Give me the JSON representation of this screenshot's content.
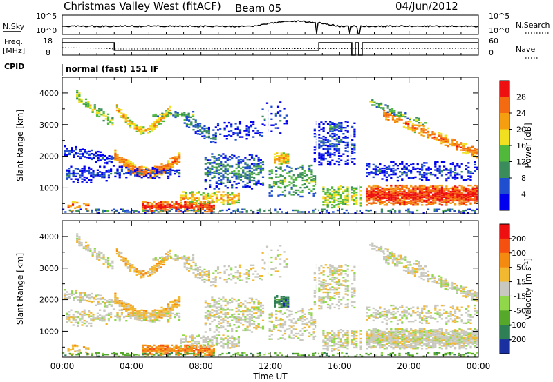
{
  "header": {
    "title": "Christmas Valley West (fitACF)",
    "beam": "Beam 05",
    "date": "04/Jun/2012"
  },
  "noise_panel": {
    "left_label": "N.Sky",
    "left_ticks": [
      "10^5",
      "10^0"
    ],
    "right_label": "N.Search",
    "right_ticks": [
      "10^5",
      "10^0"
    ]
  },
  "freq_panel": {
    "left_label_1": "Freq.",
    "left_label_2": "[MHz]",
    "left_ticks": [
      "18",
      "8"
    ],
    "right_label": "Nave",
    "right_ticks": [
      "60",
      "0"
    ]
  },
  "cpid": {
    "label": "CPID",
    "value": "normal (fast) 151 IF"
  },
  "x_axis": {
    "label": "Time UT",
    "ticks": [
      "00:00",
      "04:00",
      "08:00",
      "12:00",
      "16:00",
      "20:00",
      "00:00"
    ]
  },
  "chart_data": [
    {
      "type": "heatmap",
      "title": "",
      "xlabel": "Time UT",
      "ylabel": "Slant Range [km]",
      "x_range_hours": [
        0,
        24
      ],
      "ylim": [
        180,
        4500
      ],
      "yticks": [
        1000,
        2000,
        3000,
        4000
      ],
      "colorbar": {
        "label": "Power [dB]",
        "tick_labels": [
          "4",
          "8",
          "12",
          "16",
          "20",
          "24",
          "28"
        ],
        "colors": [
          "#0000ee",
          "#1f4fcf",
          "#3a8c5a",
          "#50b83a",
          "#f0e020",
          "#f59e10",
          "#f46a10",
          "#ee1010"
        ]
      }
    },
    {
      "type": "heatmap",
      "title": "",
      "xlabel": "Time UT",
      "ylabel": "Slant Range [km]",
      "x_range_hours": [
        0,
        24
      ],
      "ylim": [
        180,
        4500
      ],
      "yticks": [
        1000,
        2000,
        3000,
        4000
      ],
      "colorbar": {
        "label": "Velocity [m s^-1]",
        "tick_labels": [
          "200",
          "100",
          "50",
          "15",
          "-15",
          "-50",
          "-100",
          "-200"
        ],
        "colors": [
          "#1a2fa0",
          "#2f7f55",
          "#55a82a",
          "#90d84a",
          "#c8c8c0",
          "#f2b830",
          "#f58a10",
          "#f55010",
          "#ee1010"
        ]
      }
    }
  ]
}
